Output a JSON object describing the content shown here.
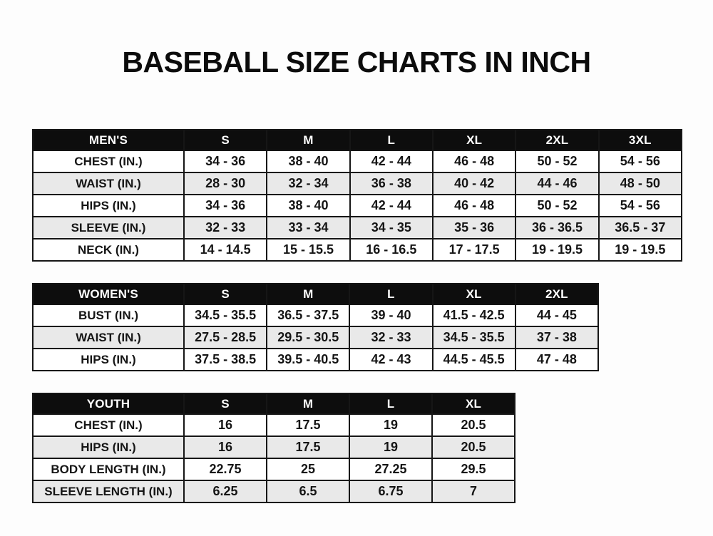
{
  "page": {
    "title": "BASEBALL SIZE CHARTS IN INCH",
    "units": "IN."
  },
  "colors": {
    "header_bg": "#0d0d0d",
    "header_text": "#ffffff",
    "border": "#161616",
    "row_bg": "#ffffff",
    "row_alt_bg": "#e9e9e9",
    "text": "#151515",
    "page_bg": "#fdfdfd"
  },
  "tables": [
    {
      "name": "mens",
      "header": [
        "MEN'S",
        "S",
        "M",
        "L",
        "XL",
        "2XL",
        "3XL"
      ],
      "rows": [
        [
          "CHEST (IN.)",
          "34 - 36",
          "38 - 40",
          "42 - 44",
          "46 - 48",
          "50 - 52",
          "54 - 56"
        ],
        [
          "WAIST (IN.)",
          "28 - 30",
          "32 - 34",
          "36 - 38",
          "40 - 42",
          "44 - 46",
          "48 - 50"
        ],
        [
          "HIPS (IN.)",
          "34 - 36",
          "38 - 40",
          "42 - 44",
          "46 - 48",
          "50 - 52",
          "54 - 56"
        ],
        [
          "SLEEVE (IN.)",
          "32 - 33",
          "33 - 34",
          "34 - 35",
          "35 - 36",
          "36 - 36.5",
          "36.5 - 37"
        ],
        [
          "NECK (IN.)",
          "14 - 14.5",
          "15 - 15.5",
          "16 - 16.5",
          "17 - 17.5",
          "19 - 19.5",
          "19 - 19.5"
        ]
      ]
    },
    {
      "name": "womens",
      "header": [
        "WOMEN'S",
        "S",
        "M",
        "L",
        "XL",
        "2XL"
      ],
      "rows": [
        [
          "BUST (IN.)",
          "34.5 - 35.5",
          "36.5 - 37.5",
          "39 - 40",
          "41.5 - 42.5",
          "44 - 45"
        ],
        [
          "WAIST (IN.)",
          "27.5 - 28.5",
          "29.5 - 30.5",
          "32 - 33",
          "34.5 - 35.5",
          "37 - 38"
        ],
        [
          "HIPS (IN.)",
          "37.5 - 38.5",
          "39.5 - 40.5",
          "42 - 43",
          "44.5 - 45.5",
          "47 - 48"
        ]
      ]
    },
    {
      "name": "youth",
      "header": [
        "YOUTH",
        "S",
        "M",
        "L",
        "XL"
      ],
      "rows": [
        [
          "CHEST (IN.)",
          "16",
          "17.5",
          "19",
          "20.5"
        ],
        [
          "HIPS (IN.)",
          "16",
          "17.5",
          "19",
          "20.5"
        ],
        [
          "BODY LENGTH (IN.)",
          "22.75",
          "25",
          "27.25",
          "29.5"
        ],
        [
          "SLEEVE LENGTH (IN.)",
          "6.25",
          "6.5",
          "6.75",
          "7"
        ]
      ]
    }
  ]
}
